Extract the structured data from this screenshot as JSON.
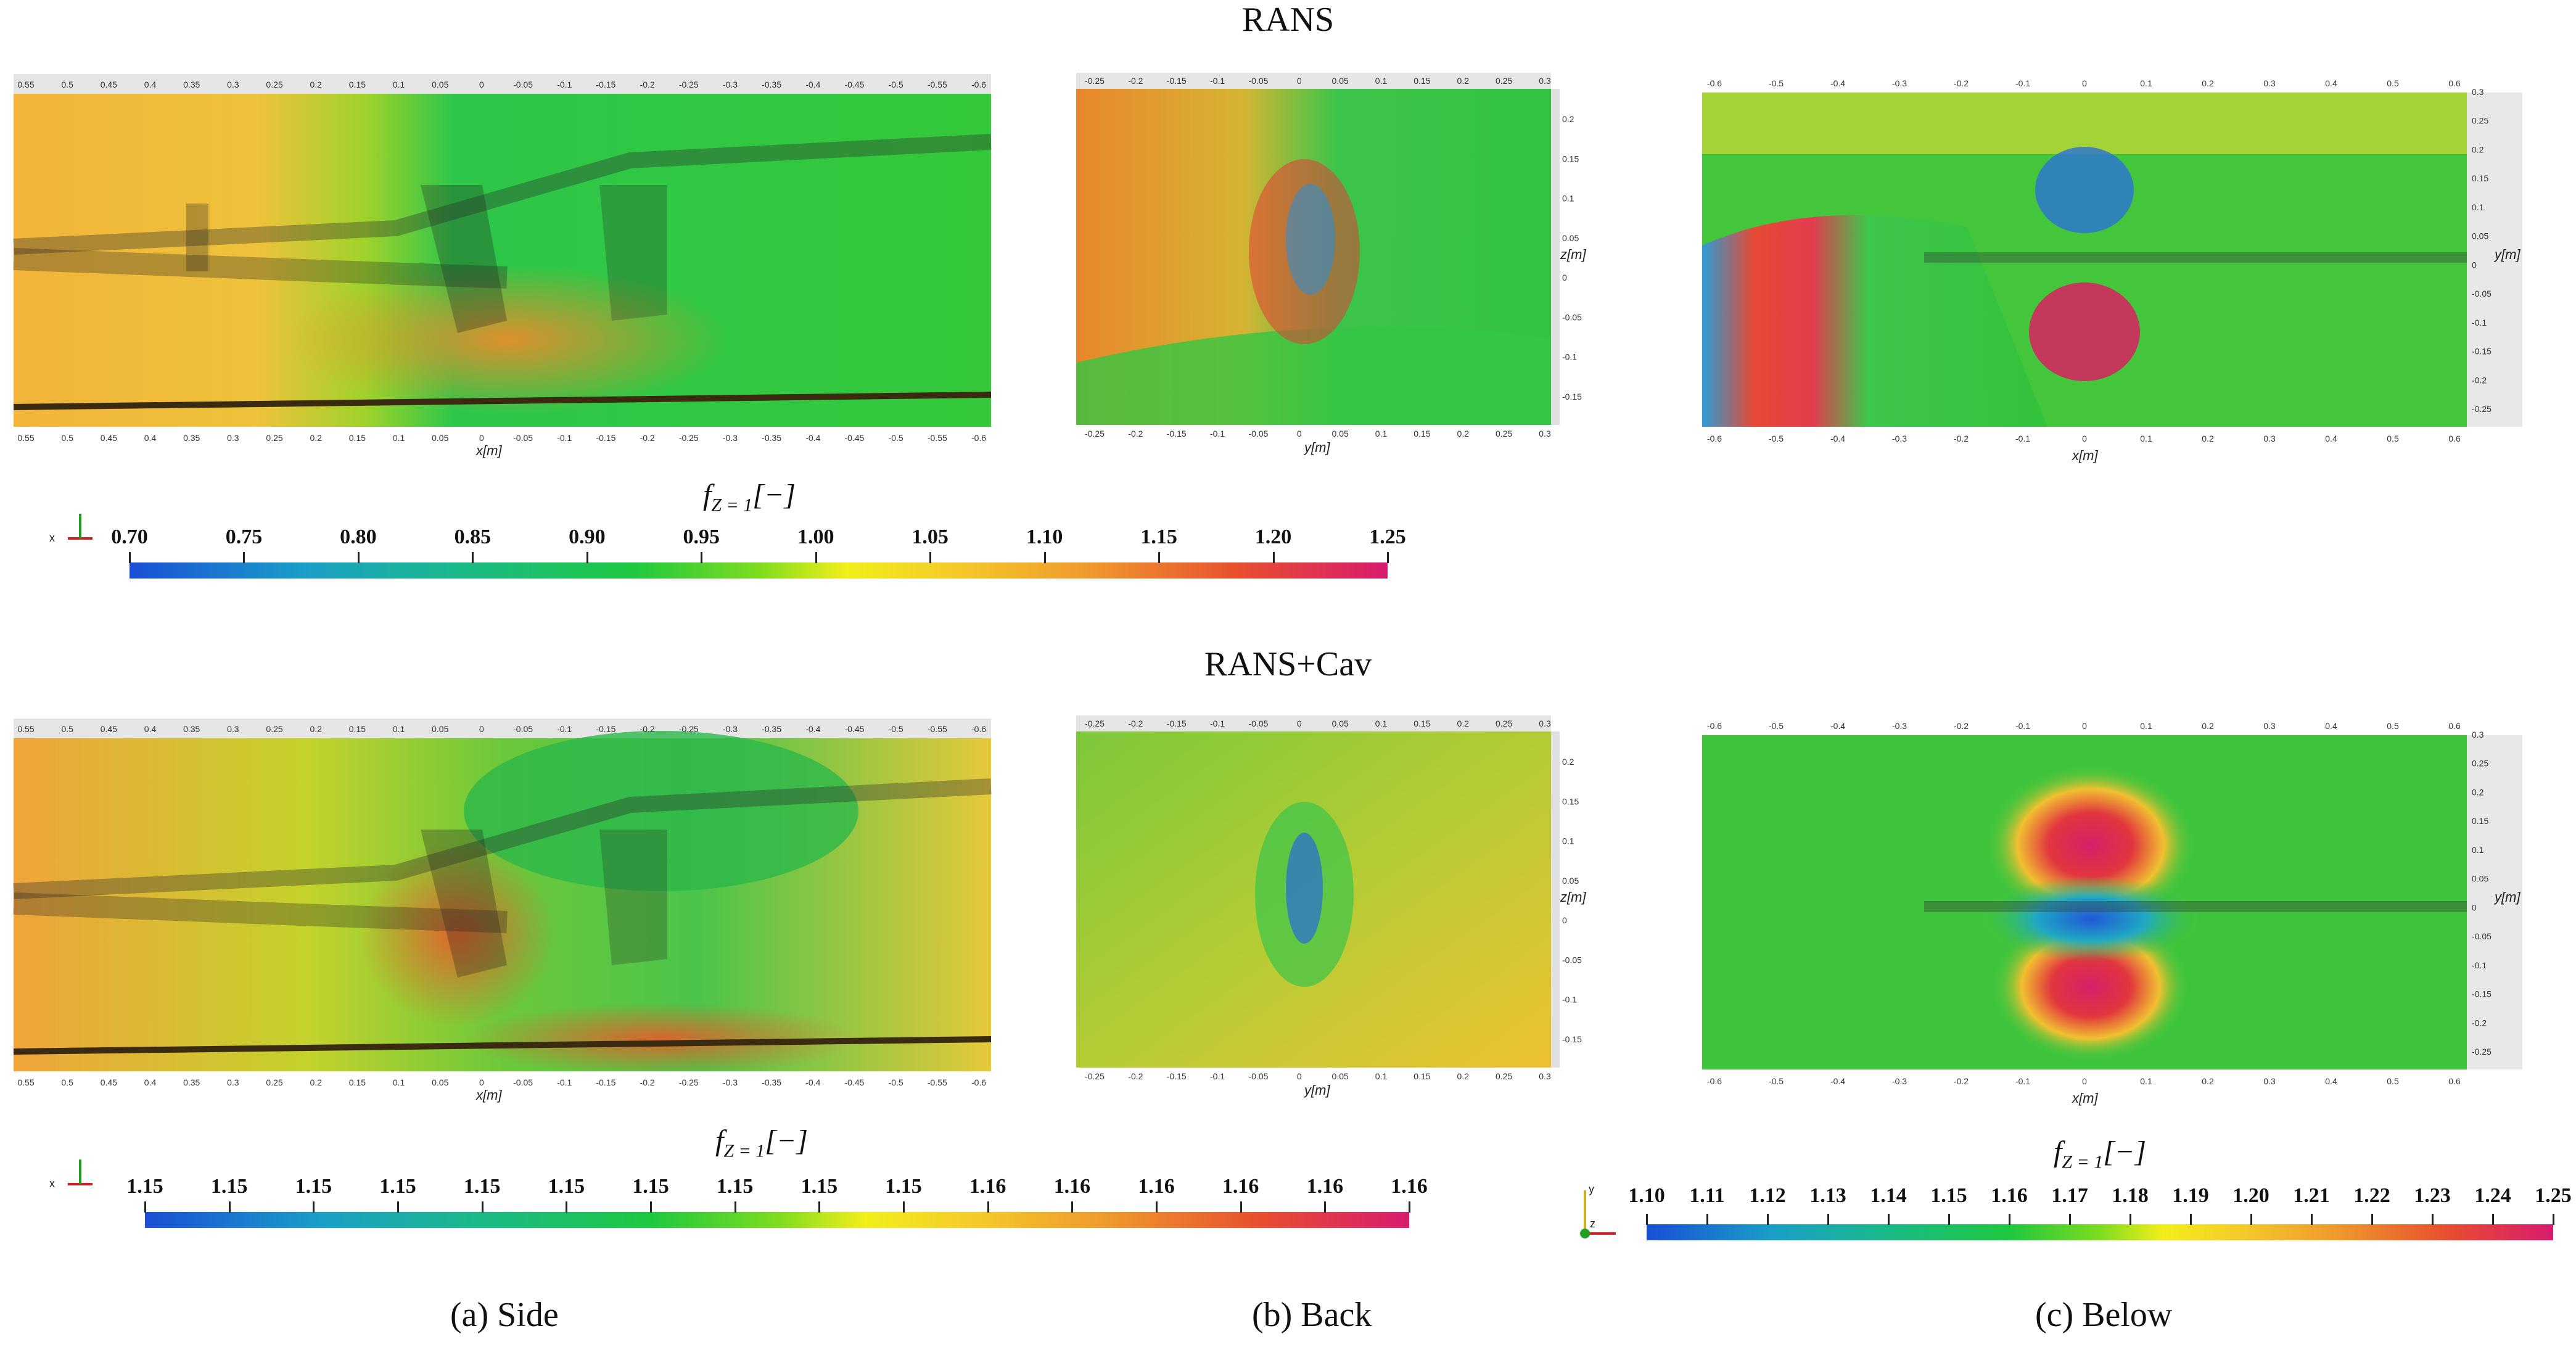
{
  "rows": {
    "top_title": "RANS",
    "bottom_title": "RANS+Cav"
  },
  "captions": {
    "side": "(a) Side",
    "back": "(b) Back",
    "below": "(c) Below"
  },
  "axes": {
    "x_label": "x[m]",
    "y_label": "y[m]",
    "z_label": "z[m]"
  },
  "side_ticks": [
    "0.55",
    "0.5",
    "0.45",
    "0.4",
    "0.35",
    "0.3",
    "0.25",
    "0.2",
    "0.15",
    "0.1",
    "0.05",
    "0",
    "-0.05",
    "-0.1",
    "-0.15",
    "-0.2",
    "-0.25",
    "-0.3",
    "-0.35",
    "-0.4",
    "-0.45",
    "-0.5",
    "-0.55",
    "-0.6"
  ],
  "back_h_ticks": [
    "-0.25",
    "-0.2",
    "-0.15",
    "-0.1",
    "-0.05",
    "0",
    "0.05",
    "0.1",
    "0.15",
    "0.2",
    "0.25",
    "0.3"
  ],
  "back_v_ticks": [
    "0.2",
    "0.15",
    "0.1",
    "0.05",
    "0",
    "-0.05",
    "-0.1",
    "-0.15"
  ],
  "below_h_ticks": [
    "-0.6",
    "-0.5",
    "-0.4",
    "-0.3",
    "-0.2",
    "-0.1",
    "0",
    "0.1",
    "0.2",
    "0.3",
    "0.4",
    "0.5",
    "0.6"
  ],
  "below_v_ticks": [
    "0.3",
    "0.25",
    "0.2",
    "0.15",
    "0.1",
    "0.05",
    "0",
    "-0.05",
    "-0.1",
    "-0.15",
    "-0.2",
    "-0.25"
  ],
  "colorbars": {
    "top": {
      "label_main": "f",
      "label_sub": "Z = 1",
      "label_unit": "[−]",
      "ticks": [
        "0.70",
        "0.75",
        "0.80",
        "0.85",
        "0.90",
        "0.95",
        "1.00",
        "1.05",
        "1.10",
        "1.15",
        "1.20",
        "1.25"
      ]
    },
    "bottom_left": {
      "label_main": "f",
      "label_sub": "Z = 1",
      "label_unit": "[−]",
      "ticks": [
        "1.15",
        "1.15",
        "1.15",
        "1.15",
        "1.15",
        "1.15",
        "1.15",
        "1.15",
        "1.15",
        "1.15",
        "1.16",
        "1.16",
        "1.16",
        "1.16",
        "1.16",
        "1.16"
      ]
    },
    "bottom_right": {
      "label_main": "f",
      "label_sub": "Z = 1",
      "label_unit": "[−]",
      "ticks": [
        "1.10",
        "1.11",
        "1.12",
        "1.13",
        "1.14",
        "1.15",
        "1.16",
        "1.17",
        "1.18",
        "1.19",
        "1.20",
        "1.21",
        "1.22",
        "1.23",
        "1.24",
        "1.25"
      ]
    }
  },
  "triad": {
    "x": "x",
    "y": "y",
    "z": "z"
  }
}
